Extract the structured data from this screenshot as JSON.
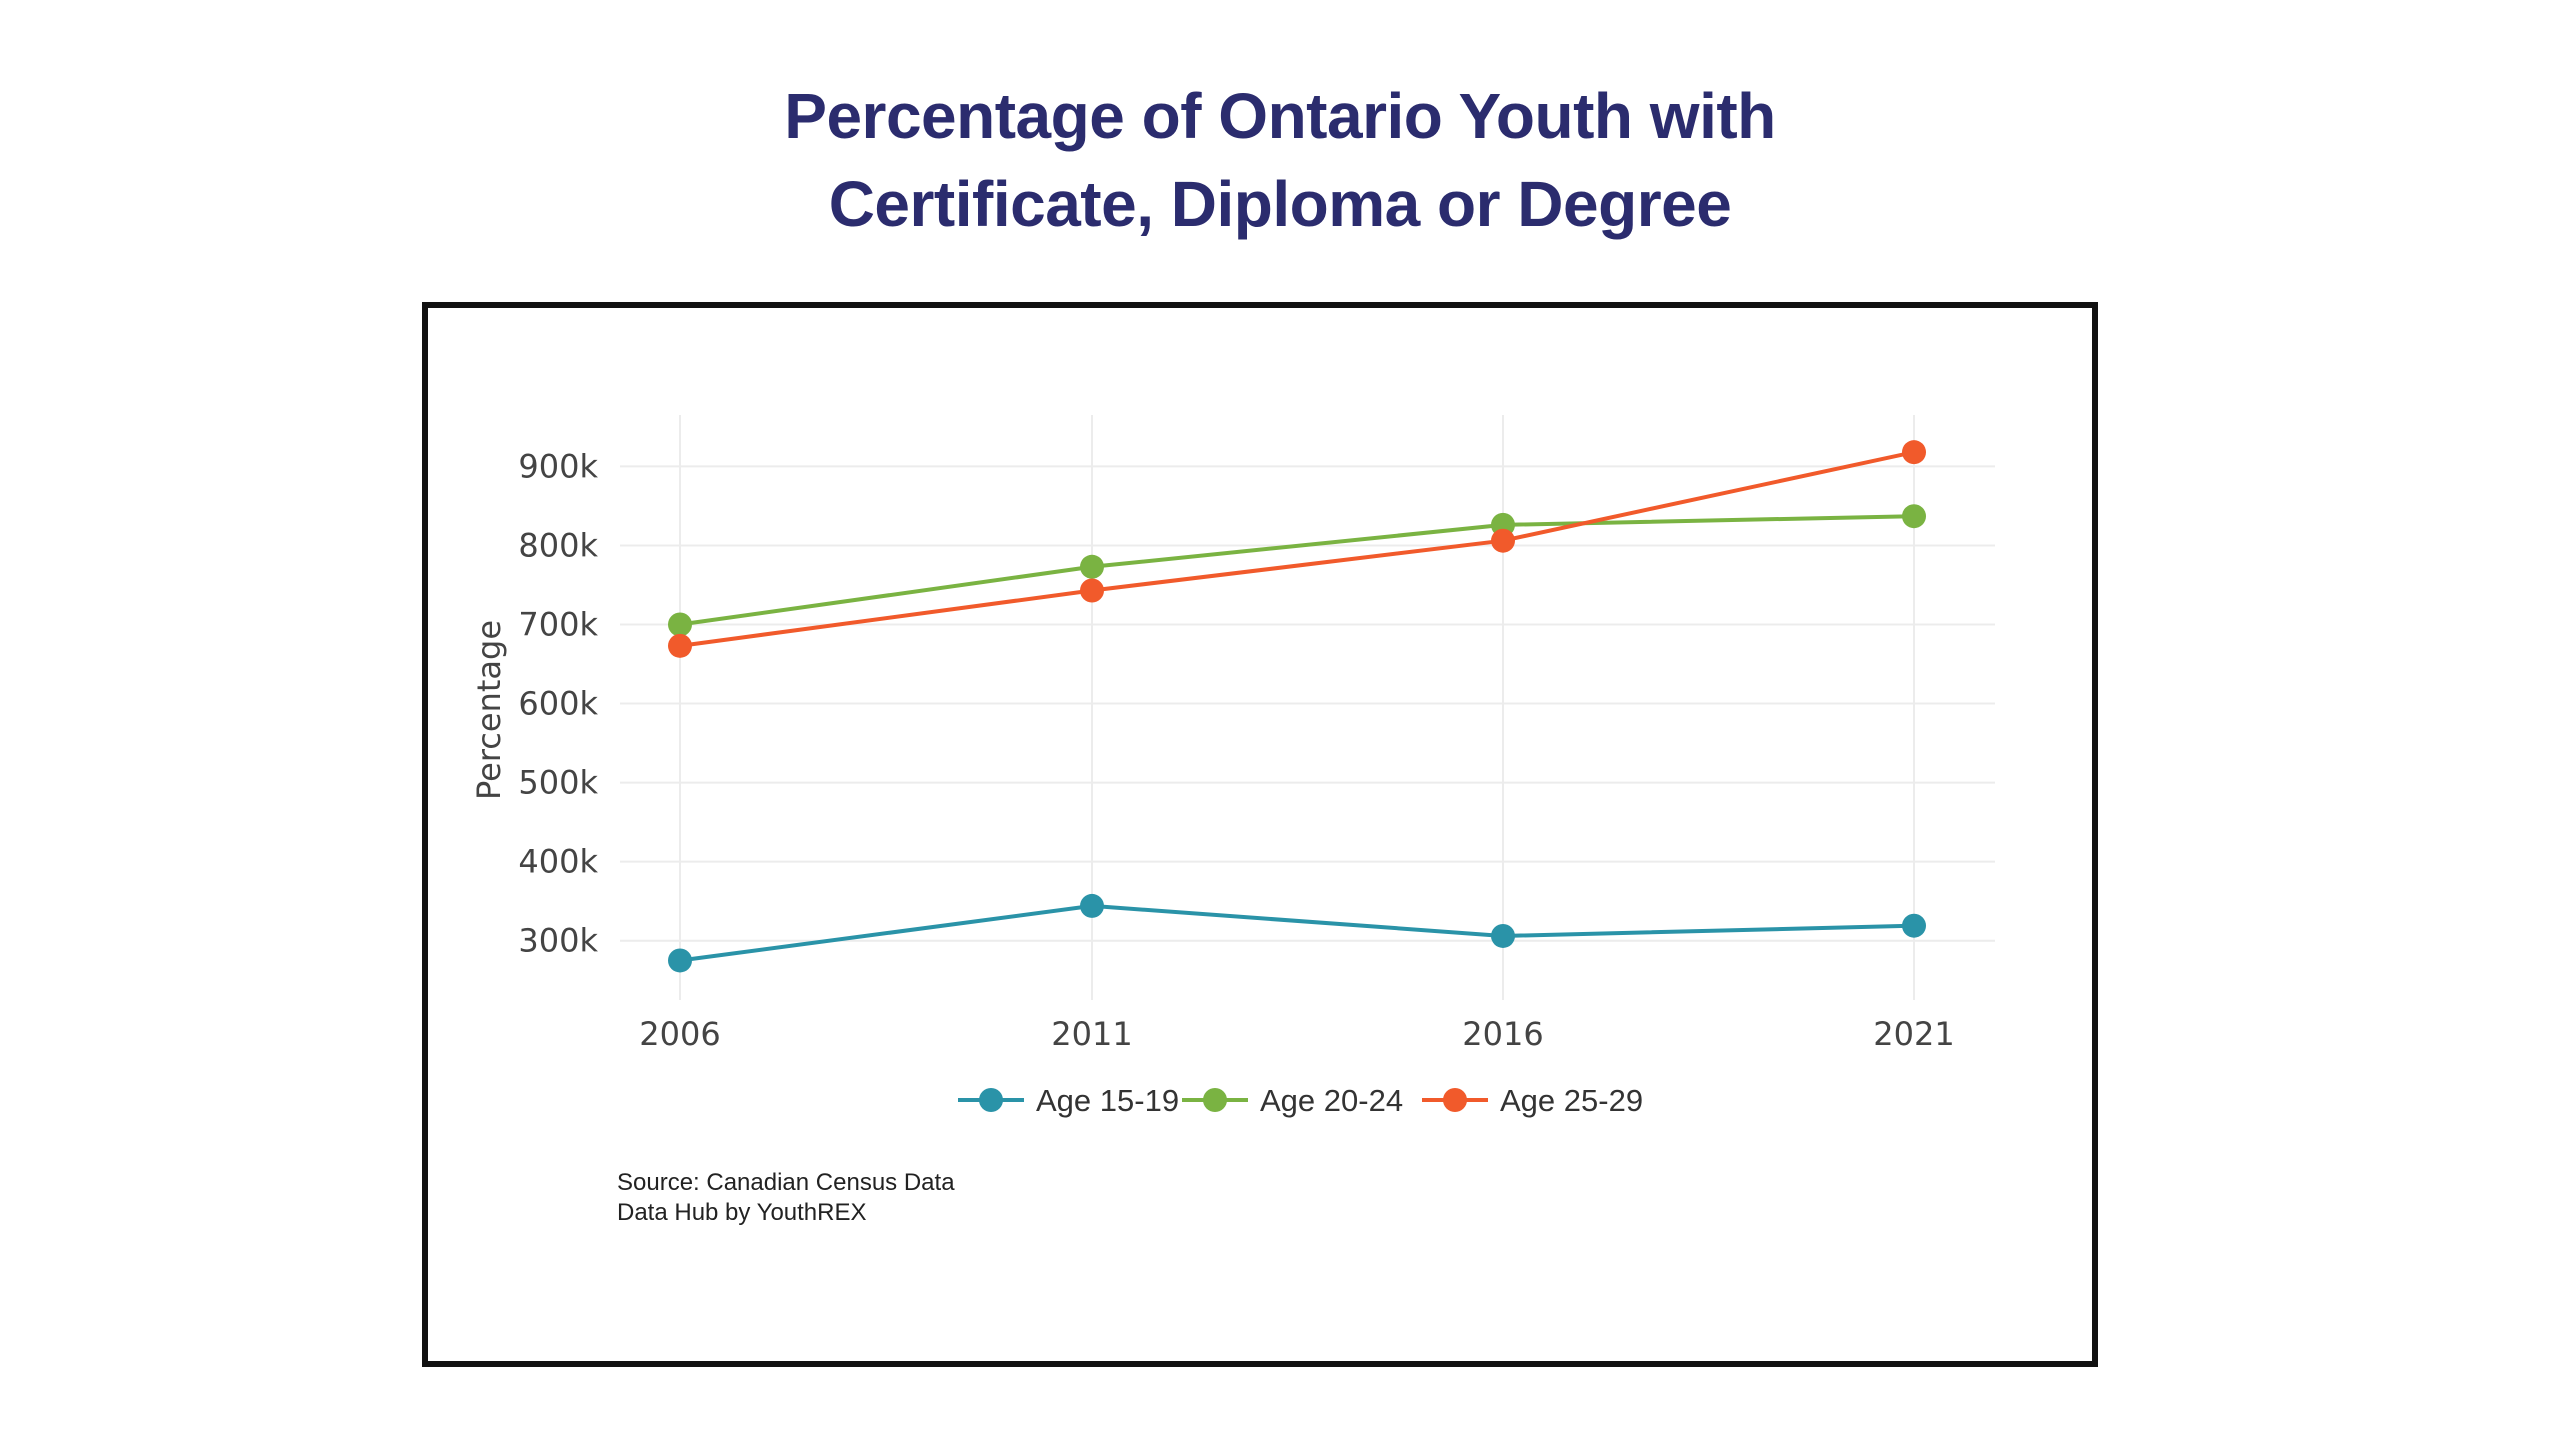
{
  "title_line1": "Percentage of Ontario Youth with",
  "title_line2": "Certificate, Diploma or Degree",
  "source_line1": "Source: Canadian Census Data",
  "source_line2": "Data Hub by YouthREX",
  "chart_data": {
    "type": "line",
    "title": "Percentage of Ontario Youth with Certificate, Diploma or Degree",
    "xlabel": "",
    "ylabel": "Percentage",
    "x": [
      "2006",
      "2011",
      "2016",
      "2021"
    ],
    "y_ticks": [
      "300k",
      "400k",
      "500k",
      "600k",
      "700k",
      "800k",
      "900k"
    ],
    "ylim": [
      225000,
      965000
    ],
    "grid": true,
    "legend_position": "bottom",
    "series": [
      {
        "name": "Age 15-19",
        "color": "#2a93a8",
        "values": [
          275000,
          344000,
          306000,
          319000
        ]
      },
      {
        "name": "Age 20-24",
        "color": "#7ab342",
        "values": [
          700000,
          773000,
          826000,
          837000
        ]
      },
      {
        "name": "Age 25-29",
        "color": "#f15a2b",
        "values": [
          673000,
          743000,
          806000,
          918000
        ]
      }
    ]
  }
}
